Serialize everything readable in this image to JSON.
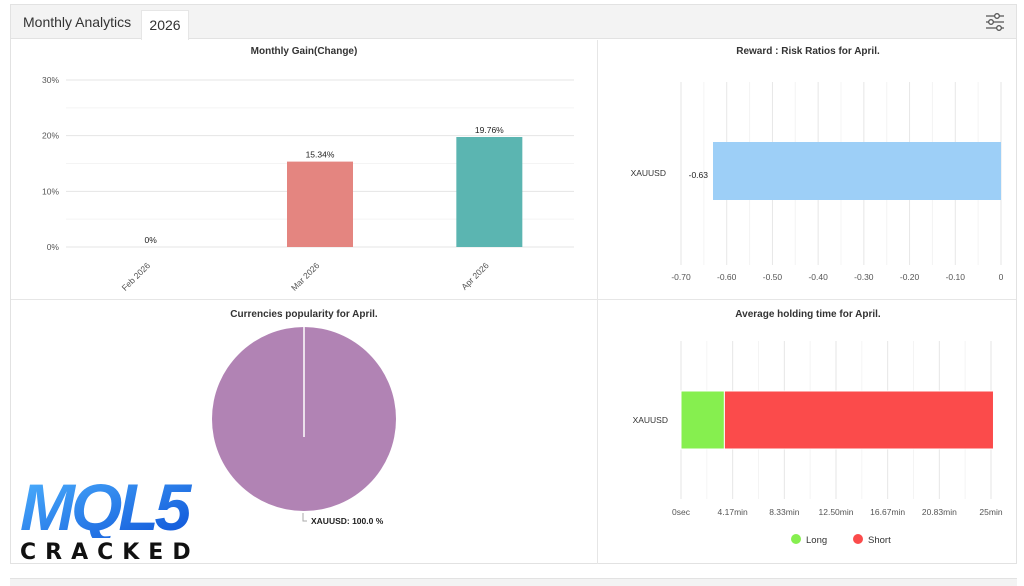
{
  "header": {
    "title": "Monthly Analytics",
    "year_tab": "2026"
  },
  "watermark": {
    "logo_text": "MQL5",
    "sub_text": "CRACKED"
  },
  "chart_data": [
    {
      "type": "bar",
      "title": "Monthly Gain(Change)",
      "categories": [
        "Feb 2026",
        "Mar 2026",
        "Apr 2026"
      ],
      "values": [
        0,
        15.34,
        19.76
      ],
      "value_labels": [
        "0%",
        "15.34%",
        "19.76%"
      ],
      "colors": [
        null,
        "#e48580",
        "#5bb5b1"
      ],
      "y_ticks": [
        "0%",
        "10%",
        "20%",
        "30%"
      ],
      "ylim": [
        0,
        30
      ]
    },
    {
      "type": "bar",
      "orientation": "horizontal",
      "title": "Reward : Risk Ratios for April.",
      "categories": [
        "XAUUSD"
      ],
      "values": [
        -0.63
      ],
      "value_labels": [
        "-0.63"
      ],
      "color": "#9dcff7",
      "x_ticks": [
        "-0.70",
        "-0.60",
        "-0.50",
        "-0.40",
        "-0.30",
        "-0.20",
        "-0.10",
        "0"
      ],
      "xlim": [
        -0.7,
        0
      ]
    },
    {
      "type": "pie",
      "title": "Currencies popularity for April.",
      "slices": [
        {
          "label": "XAUUSD",
          "value": 100.0,
          "color": "#b183b4"
        }
      ],
      "slice_labels": [
        "XAUUSD: 100.0 %"
      ]
    },
    {
      "type": "bar",
      "orientation": "horizontal",
      "stacked": true,
      "title": "Average holding time for April.",
      "categories": [
        "XAUUSD"
      ],
      "series": [
        {
          "name": "Long",
          "values": [
            3.5
          ],
          "color": "#86ef4f"
        },
        {
          "name": "Short",
          "values": [
            21.7
          ],
          "color": "#fb4b4b"
        }
      ],
      "x_ticks": [
        "0sec",
        "4.17min",
        "8.33min",
        "12.50min",
        "16.67min",
        "20.83min",
        "25min"
      ],
      "xlim": [
        0,
        25
      ]
    }
  ]
}
